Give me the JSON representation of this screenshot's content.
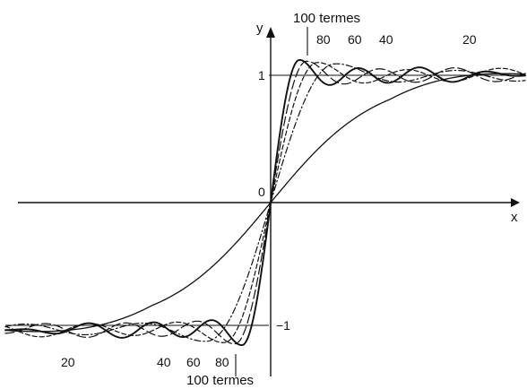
{
  "axes": {
    "x_label": "x",
    "y_label": "y",
    "origin_label": "0",
    "y_tick_pos_label": "1",
    "y_tick_neg_label": "−1"
  },
  "labels": {
    "top_header": "100 termes",
    "bottom_header": "100 termes",
    "top_80": "80",
    "top_60": "60",
    "top_40": "40",
    "top_20": "20",
    "bottom_20": "20",
    "bottom_40": "40",
    "bottom_60": "60",
    "bottom_80": "80"
  },
  "approximations": [
    {
      "terms": 20,
      "style": "solid-thin"
    },
    {
      "terms": 40,
      "style": "dash-dot"
    },
    {
      "terms": 60,
      "style": "dashed"
    },
    {
      "terms": 80,
      "style": "long-dash"
    },
    {
      "terms": 100,
      "style": "solid-bold"
    }
  ],
  "target_levels": [
    1,
    -1
  ],
  "colors": {
    "ink": "#111111",
    "paper": "#ffffff"
  }
}
